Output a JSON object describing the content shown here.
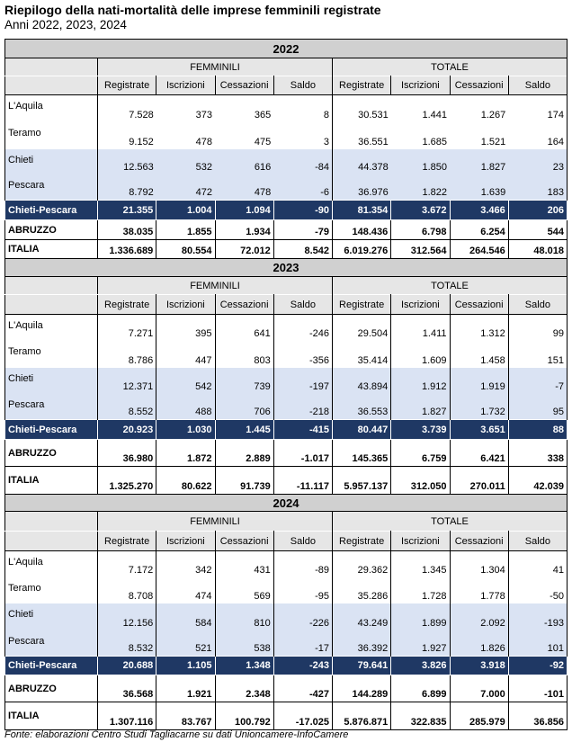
{
  "title": "Riepilogo della nati-mortalità delle imprese femminili registrate",
  "subtitle": "Anni 2022, 2023, 2024",
  "groups": [
    "FEMMINILI",
    "TOTALE"
  ],
  "columns": [
    "Registrate",
    "Iscrizioni",
    "Cessazioni",
    "Saldo",
    "Registrate",
    "Iscrizioni",
    "Cessazioni",
    "Saldo"
  ],
  "years": [
    {
      "year": "2022",
      "rows": [
        {
          "label": "L'Aquila",
          "values": [
            "7.528",
            "373",
            "365",
            "8",
            "30.531",
            "1.441",
            "1.267",
            "174"
          ]
        },
        {
          "label": "Teramo",
          "values": [
            "9.152",
            "478",
            "475",
            "3",
            "36.551",
            "1.685",
            "1.521",
            "164"
          ]
        },
        {
          "label": "Chieti",
          "values": [
            "12.563",
            "532",
            "616",
            "-84",
            "44.378",
            "1.850",
            "1.827",
            "23"
          ]
        },
        {
          "label": "Pescara",
          "values": [
            "8.792",
            "472",
            "478",
            "-6",
            "36.976",
            "1.822",
            "1.639",
            "183"
          ]
        },
        {
          "label": "Chieti-Pescara",
          "values": [
            "21.355",
            "1.004",
            "1.094",
            "-90",
            "81.354",
            "3.672",
            "3.466",
            "206"
          ]
        },
        {
          "label": "ABRUZZO",
          "values": [
            "38.035",
            "1.855",
            "1.934",
            "-79",
            "148.436",
            "6.798",
            "6.254",
            "544"
          ]
        },
        {
          "label": "ITALIA",
          "values": [
            "1.336.689",
            "80.554",
            "72.012",
            "8.542",
            "6.019.276",
            "312.564",
            "264.546",
            "48.018"
          ]
        }
      ]
    },
    {
      "year": "2023",
      "rows": [
        {
          "label": "L'Aquila",
          "values": [
            "7.271",
            "395",
            "641",
            "-246",
            "29.504",
            "1.411",
            "1.312",
            "99"
          ]
        },
        {
          "label": "Teramo",
          "values": [
            "8.786",
            "447",
            "803",
            "-356",
            "35.414",
            "1.609",
            "1.458",
            "151"
          ]
        },
        {
          "label": "Chieti",
          "values": [
            "12.371",
            "542",
            "739",
            "-197",
            "43.894",
            "1.912",
            "1.919",
            "-7"
          ]
        },
        {
          "label": "Pescara",
          "values": [
            "8.552",
            "488",
            "706",
            "-218",
            "36.553",
            "1.827",
            "1.732",
            "95"
          ]
        },
        {
          "label": "Chieti-Pescara",
          "values": [
            "20.923",
            "1.030",
            "1.445",
            "-415",
            "80.447",
            "3.739",
            "3.651",
            "88"
          ]
        },
        {
          "label": "ABRUZZO",
          "values": [
            "36.980",
            "1.872",
            "2.889",
            "-1.017",
            "145.365",
            "6.759",
            "6.421",
            "338"
          ]
        },
        {
          "label": "ITALIA",
          "values": [
            "1.325.270",
            "80.622",
            "91.739",
            "-11.117",
            "5.957.137",
            "312.050",
            "270.011",
            "42.039"
          ]
        }
      ]
    },
    {
      "year": "2024",
      "rows": [
        {
          "label": "L'Aquila",
          "values": [
            "7.172",
            "342",
            "431",
            "-89",
            "29.362",
            "1.345",
            "1.304",
            "41"
          ]
        },
        {
          "label": "Teramo",
          "values": [
            "8.708",
            "474",
            "569",
            "-95",
            "35.286",
            "1.728",
            "1.778",
            "-50"
          ]
        },
        {
          "label": "Chieti",
          "values": [
            "12.156",
            "584",
            "810",
            "-226",
            "43.249",
            "1.899",
            "2.092",
            "-193"
          ]
        },
        {
          "label": "Pescara",
          "values": [
            "8.532",
            "521",
            "538",
            "-17",
            "36.392",
            "1.927",
            "1.826",
            "101"
          ]
        },
        {
          "label": "Chieti-Pescara",
          "values": [
            "20.688",
            "1.105",
            "1.348",
            "-243",
            "79.641",
            "3.826",
            "3.918",
            "-92"
          ]
        },
        {
          "label": "ABRUZZO",
          "values": [
            "36.568",
            "1.921",
            "2.348",
            "-427",
            "144.289",
            "6.899",
            "7.000",
            "-101"
          ]
        },
        {
          "label": "ITALIA",
          "values": [
            "1.307.116",
            "83.767",
            "100.792",
            "-17.025",
            "5.876.871",
            "322.835",
            "285.979",
            "36.856"
          ]
        }
      ]
    }
  ],
  "footer": "Fonte: elaborazioni Centro Studi Tagliacarne su dati Unioncamere-InfoCamere"
}
